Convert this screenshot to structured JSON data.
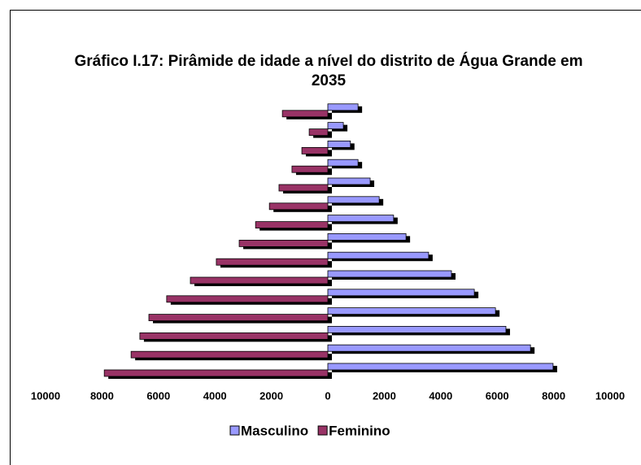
{
  "chart_data": {
    "type": "pyramid",
    "title": "Gráfico I.17: Pirâmide de idade a nível do distrito de Água Grande em 2035",
    "categories": [
      null,
      null,
      null,
      null,
      null,
      null,
      null,
      null,
      null,
      null,
      null,
      null,
      null,
      null,
      null
    ],
    "series": [
      {
        "name": "Masculino",
        "color": "#9999ff",
        "side": "right",
        "values": [
          7980,
          7180,
          6310,
          5940,
          5190,
          4380,
          3570,
          2770,
          2330,
          1820,
          1500,
          1070,
          800,
          550,
          1070
        ]
      },
      {
        "name": "Feminino",
        "color": "#993366",
        "side": "left",
        "values": [
          7920,
          6970,
          6660,
          6340,
          5710,
          4870,
          3950,
          3140,
          2560,
          2070,
          1730,
          1270,
          920,
          660,
          1610
        ]
      }
    ],
    "xlim": [
      -10000,
      10000
    ],
    "xticks": [
      {
        "value": -10000,
        "label": "10000"
      },
      {
        "value": -8000,
        "label": "8000"
      },
      {
        "value": -6000,
        "label": "6000"
      },
      {
        "value": -4000,
        "label": "4000"
      },
      {
        "value": -2000,
        "label": "2000"
      },
      0,
      2000,
      4000,
      6000,
      8000,
      10000
    ],
    "legend": "bottom"
  }
}
